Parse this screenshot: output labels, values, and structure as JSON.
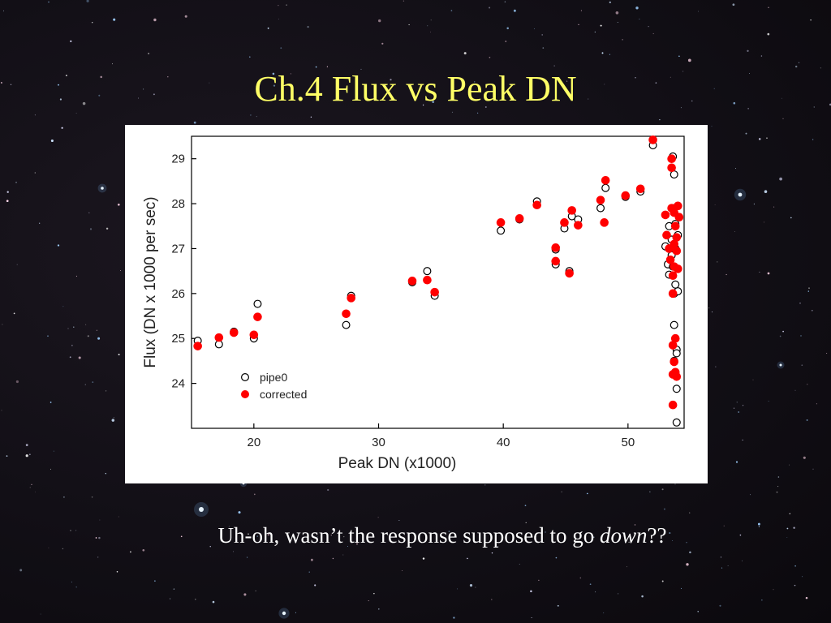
{
  "slide": {
    "title": "Ch.4 Flux vs Peak DN",
    "caption_prefix": "Uh-oh, wasn’t the response supposed to go ",
    "caption_emph": "down",
    "caption_suffix": "??",
    "colors": {
      "title": "#ffff66",
      "caption": "#ffffff",
      "background": "#120f16"
    }
  },
  "chart_data": {
    "type": "scatter",
    "xlabel": "Peak DN (x1000)",
    "ylabel": "Flux (DN x 1000 per sec)",
    "xlim": [
      15,
      54.5
    ],
    "ylim": [
      23,
      29.5
    ],
    "xticks": [
      20,
      30,
      40,
      50
    ],
    "yticks": [
      24,
      25,
      26,
      27,
      28,
      29
    ],
    "grid": false,
    "legend_position": "bottom-left",
    "series": [
      {
        "name": "pipe0",
        "marker": "open-circle",
        "color": "#000000",
        "points": [
          [
            15.5,
            24.95
          ],
          [
            17.2,
            24.87
          ],
          [
            18.4,
            25.15
          ],
          [
            20.0,
            25.0
          ],
          [
            20.3,
            25.77
          ],
          [
            27.4,
            25.3
          ],
          [
            27.8,
            25.95
          ],
          [
            32.7,
            26.25
          ],
          [
            33.9,
            26.5
          ],
          [
            34.5,
            25.95
          ],
          [
            39.8,
            27.4
          ],
          [
            41.3,
            27.65
          ],
          [
            42.7,
            28.05
          ],
          [
            44.2,
            26.65
          ],
          [
            44.2,
            26.98
          ],
          [
            44.9,
            27.45
          ],
          [
            45.3,
            26.5
          ],
          [
            45.5,
            27.72
          ],
          [
            46.0,
            27.65
          ],
          [
            47.8,
            27.9
          ],
          [
            48.2,
            28.35
          ],
          [
            49.8,
            28.15
          ],
          [
            51.0,
            28.27
          ],
          [
            52.0,
            29.3
          ],
          [
            53.0,
            27.05
          ],
          [
            53.2,
            26.65
          ],
          [
            53.3,
            27.5
          ],
          [
            53.3,
            26.42
          ],
          [
            53.5,
            27.2
          ],
          [
            53.5,
            26.85
          ],
          [
            53.6,
            26.6
          ],
          [
            53.6,
            29.05
          ],
          [
            53.6,
            27.9
          ],
          [
            53.7,
            26.0
          ],
          [
            53.7,
            28.65
          ],
          [
            53.7,
            25.3
          ],
          [
            53.7,
            24.5
          ],
          [
            53.8,
            27.55
          ],
          [
            53.8,
            27.0
          ],
          [
            53.8,
            26.2
          ],
          [
            53.9,
            24.75
          ],
          [
            53.9,
            24.67
          ],
          [
            53.9,
            23.88
          ],
          [
            53.9,
            23.13
          ],
          [
            54.0,
            26.05
          ],
          [
            54.0,
            27.3
          ]
        ]
      },
      {
        "name": "corrected",
        "marker": "filled-circle",
        "color": "#ff0000",
        "points": [
          [
            15.5,
            24.83
          ],
          [
            17.2,
            25.02
          ],
          [
            18.4,
            25.13
          ],
          [
            20.0,
            25.08
          ],
          [
            20.3,
            25.48
          ],
          [
            27.4,
            25.55
          ],
          [
            27.8,
            25.9
          ],
          [
            32.7,
            26.28
          ],
          [
            33.9,
            26.3
          ],
          [
            34.5,
            26.03
          ],
          [
            39.8,
            27.58
          ],
          [
            41.3,
            27.67
          ],
          [
            42.7,
            27.97
          ],
          [
            44.2,
            26.72
          ],
          [
            44.2,
            27.02
          ],
          [
            44.9,
            27.58
          ],
          [
            45.3,
            26.45
          ],
          [
            45.5,
            27.85
          ],
          [
            46.0,
            27.52
          ],
          [
            47.8,
            28.08
          ],
          [
            48.1,
            27.58
          ],
          [
            48.2,
            28.52
          ],
          [
            49.8,
            28.18
          ],
          [
            51.0,
            28.33
          ],
          [
            52.0,
            29.42
          ],
          [
            53.0,
            27.75
          ],
          [
            53.1,
            27.3
          ],
          [
            53.3,
            27.0
          ],
          [
            53.4,
            26.75
          ],
          [
            53.5,
            29.0
          ],
          [
            53.5,
            28.8
          ],
          [
            53.5,
            27.9
          ],
          [
            53.6,
            26.4
          ],
          [
            53.6,
            26.0
          ],
          [
            53.6,
            24.85
          ],
          [
            53.6,
            24.2
          ],
          [
            53.6,
            23.52
          ],
          [
            53.7,
            27.8
          ],
          [
            53.7,
            27.1
          ],
          [
            53.7,
            26.6
          ],
          [
            53.7,
            24.48
          ],
          [
            53.8,
            27.5
          ],
          [
            53.8,
            25.0
          ],
          [
            53.8,
            24.25
          ],
          [
            53.9,
            27.25
          ],
          [
            53.9,
            26.95
          ],
          [
            53.9,
            24.15
          ],
          [
            54.0,
            27.95
          ],
          [
            54.0,
            26.55
          ],
          [
            54.1,
            27.7
          ]
        ]
      }
    ]
  }
}
